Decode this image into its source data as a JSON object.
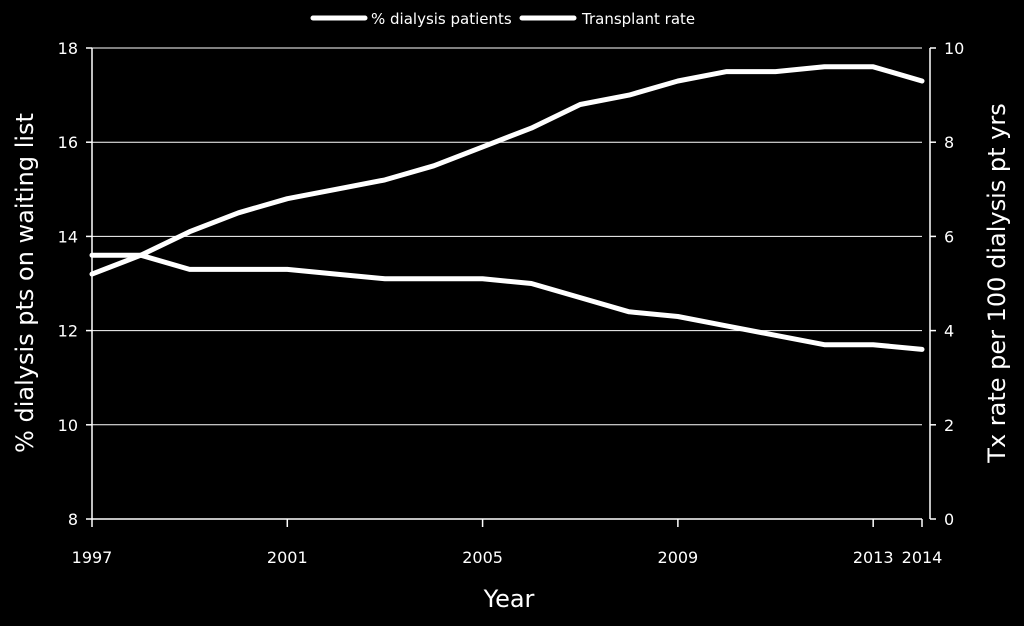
{
  "chart_data": {
    "type": "line",
    "x": [
      1997,
      1998,
      1999,
      2000,
      2001,
      2002,
      2003,
      2004,
      2005,
      2006,
      2007,
      2008,
      2009,
      2010,
      2011,
      2012,
      2013,
      2014
    ],
    "series": [
      {
        "name": "% dialysis patients",
        "axis": "left",
        "values": [
          13.2,
          13.6,
          14.1,
          14.5,
          14.8,
          15.0,
          15.2,
          15.5,
          15.9,
          16.3,
          16.8,
          17.0,
          17.3,
          17.5,
          17.5,
          17.6,
          17.6,
          17.3
        ]
      },
      {
        "name": "Transplant rate",
        "axis": "right",
        "values": [
          5.6,
          5.6,
          5.3,
          5.3,
          5.3,
          5.2,
          5.1,
          5.1,
          5.1,
          5.0,
          4.7,
          4.4,
          4.3,
          4.1,
          3.9,
          3.7,
          3.7,
          3.6
        ]
      }
    ],
    "xlabel": "Year",
    "ylabel": "% dialysis pts on waiting list",
    "y2label": "Tx rate per 100 dialysis pt yrs",
    "xticks": [
      1997,
      2001,
      2005,
      2009,
      2013,
      2014
    ],
    "ylim": [
      8,
      18
    ],
    "yticks": [
      8,
      10,
      12,
      14,
      16,
      18
    ],
    "y2lim": [
      0,
      10
    ],
    "y2ticks": [
      0,
      2,
      4,
      6,
      8,
      10
    ],
    "grid": true,
    "legend": "top-center",
    "colors": {
      "background": "#000000",
      "foreground": "#ffffff"
    }
  }
}
